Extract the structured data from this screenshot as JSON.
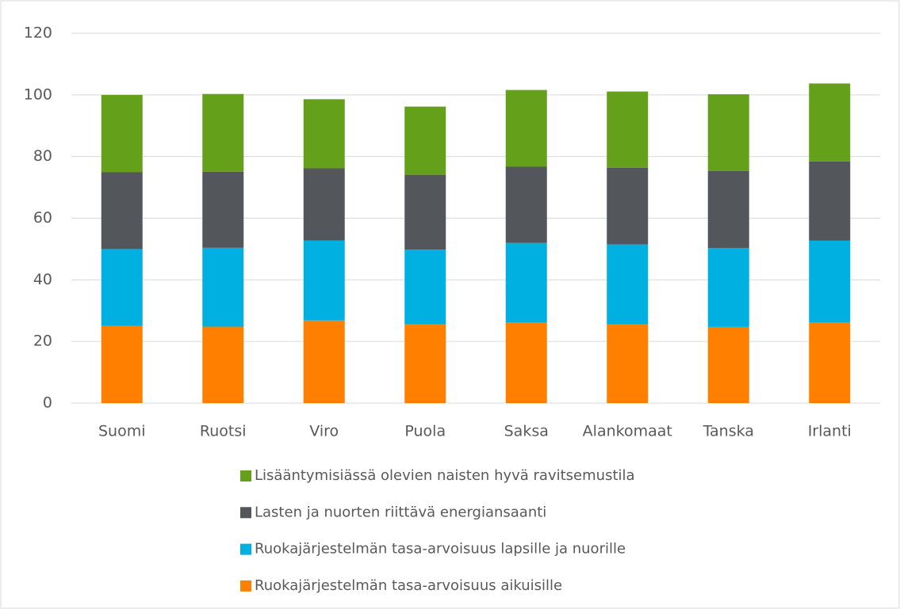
{
  "chart_data": {
    "type": "stacked_bar",
    "categories": [
      "Suomi",
      "Ruotsi",
      "Viro",
      "Puola",
      "Saksa",
      "Alankomaat",
      "Tanska",
      "Irlanti"
    ],
    "series": [
      {
        "name": "Ruokajärjestelmän tasa-arvoisuus aikuisille",
        "color": "#ff8000",
        "values": [
          25,
          24.8,
          26.8,
          25.5,
          26.2,
          25.5,
          24.7,
          26.2
        ]
      },
      {
        "name": "Ruokajärjestelmän tasa-arvoisuus lapsille ja nuorille",
        "color": "#00b0e0",
        "values": [
          25,
          25.6,
          26,
          24.3,
          25.8,
          26,
          25.6,
          26.5
        ]
      },
      {
        "name": "Lasten ja nuorten  riittävä energiansaanti",
        "color": "#53565a",
        "values": [
          25,
          24.7,
          23.4,
          24.3,
          24.7,
          24.9,
          25,
          25.7
        ]
      },
      {
        "name": "Lisääntymisiässä olevien naisten hyvä ravitsemustila",
        "color": "#64a019",
        "values": [
          25,
          25.2,
          22.4,
          22.1,
          24.9,
          24.7,
          24.9,
          25.3
        ]
      }
    ],
    "ylim": [
      0,
      120
    ],
    "yticks": [
      0,
      20,
      40,
      60,
      80,
      100,
      120
    ],
    "grid": true,
    "legend": "bottom"
  }
}
